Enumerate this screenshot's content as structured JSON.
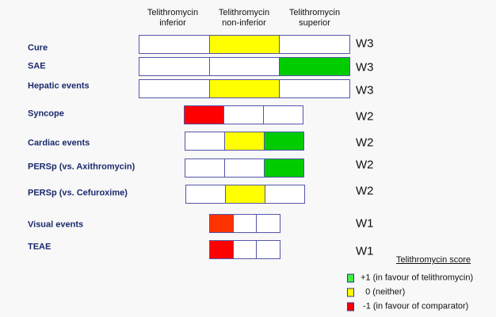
{
  "headers": [
    {
      "line1": "Telithromycin",
      "line2": "inferior"
    },
    {
      "line1": "Telithromycin",
      "line2": "non-inferior"
    },
    {
      "line1": "Telithromycin",
      "line2": "superior"
    }
  ],
  "rows": [
    {
      "label": "Cure",
      "weight": "W3",
      "score": 0,
      "cells": [
        "#ffffff",
        "#ffff00",
        "#ffffff"
      ]
    },
    {
      "label": "SAE",
      "weight": "W3",
      "score": 1,
      "cells": [
        "#ffffff",
        "#ffffff",
        "#00cc00"
      ]
    },
    {
      "label": "Hepatic events",
      "weight": "W3",
      "score": 0,
      "cells": [
        "#ffffff",
        "#ffff00",
        "#ffffff"
      ]
    },
    {
      "label": "Syncope",
      "weight": "W2",
      "score": -1,
      "cells": [
        "#ff0000",
        "#ffffff",
        "#ffffff"
      ]
    },
    {
      "label": "Cardiac events",
      "weight": "W2",
      "score": "0/+1",
      "cells": [
        "#ffffff",
        "#ffff00",
        "#00cc00"
      ]
    },
    {
      "label": "PERSp (vs. Axithromycin)",
      "weight": "W2",
      "score": 1,
      "cells": [
        "#ffffff",
        "#ffffff",
        "#00cc00"
      ]
    },
    {
      "label": "PERSp (vs. Cefuroxime)",
      "weight": "W2",
      "score": 0,
      "cells": [
        "#ffffff",
        "#ffff00",
        "#ffffff"
      ]
    },
    {
      "label": "Visual events",
      "weight": "W1",
      "score": -1,
      "cells": [
        "#ff3300",
        "#ffffff",
        "#ffffff"
      ]
    },
    {
      "label": "TEAE",
      "weight": "W1",
      "score": -1,
      "cells": [
        "#ff0000",
        "#ffffff",
        "#ffffff"
      ]
    }
  ],
  "legend": {
    "title": "Telithromycin score",
    "items": [
      {
        "text": "+1 (in favour of telithromycin)",
        "color": "#44ee44"
      },
      {
        "text": "  0 (neither)",
        "color": "#ffff00"
      },
      {
        "text": " -1 (in favour of comparator)",
        "color": "#ff0000"
      }
    ]
  }
}
